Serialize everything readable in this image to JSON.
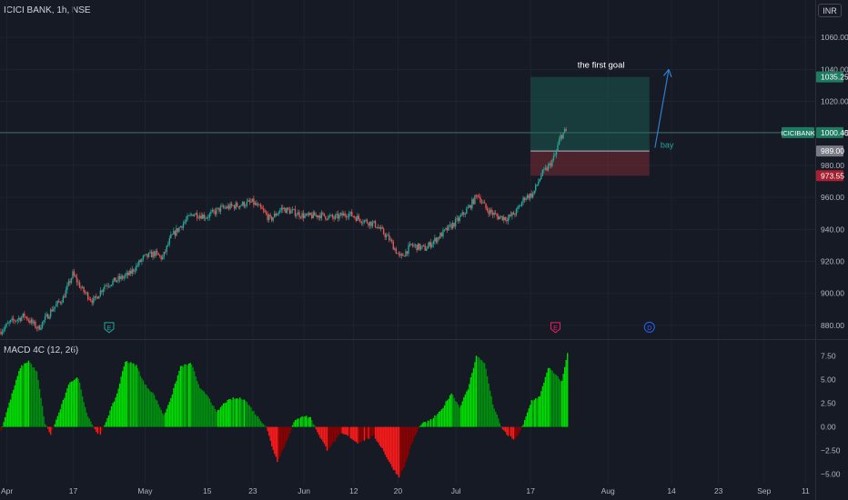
{
  "header": {
    "title": "ICICI BANK, 1h, NSE"
  },
  "currency_button": {
    "label": "INR"
  },
  "chart_data": [
    {
      "type": "line",
      "name": "price",
      "symbol_label": "ICICIBANK",
      "yticks": [
        880,
        900,
        920,
        940,
        960,
        980,
        1000,
        1020,
        1040,
        1060
      ],
      "ylim": [
        872,
        1072
      ],
      "xticks": [
        {
          "label": "Apr",
          "i": 5
        },
        {
          "label": "17",
          "i": 53
        },
        {
          "label": "May",
          "i": 105
        },
        {
          "label": "15",
          "i": 150
        },
        {
          "label": "23",
          "i": 183
        },
        {
          "label": "Jun",
          "i": 220
        },
        {
          "label": "12",
          "i": 256
        },
        {
          "label": "20",
          "i": 288
        },
        {
          "label": "Jul",
          "i": 330
        },
        {
          "label": "17",
          "i": 384
        },
        {
          "label": "Aug",
          "i": 440
        },
        {
          "label": "14",
          "i": 486
        },
        {
          "label": "23",
          "i": 520
        },
        {
          "label": "Sep",
          "i": 553
        },
        {
          "label": "11",
          "i": 583
        }
      ],
      "xlim": [
        0,
        590
      ],
      "last_price": 1000.45,
      "last_price_label": "1000.45",
      "levels": {
        "target": 1035.25,
        "target_label": "1035.25",
        "entry": 989.0,
        "entry_label": "989.00",
        "stop": 973.55,
        "stop_label": "973.55"
      },
      "position_box": {
        "i_start": 384,
        "i_end": 470
      },
      "arrow": {
        "i_start": 474,
        "y_start": 991,
        "i_end": 484,
        "y_end": 1040
      },
      "annotations": [
        {
          "text": "the first goal",
          "i": 435,
          "y": 1041
        },
        {
          "text": "bay",
          "i": 478,
          "y": 991
        }
      ],
      "event_markers": [
        {
          "label": "E",
          "i": 79,
          "y": 880
        },
        {
          "label": "E",
          "i": 402,
          "y": 880
        },
        {
          "label": "D",
          "i": 470,
          "y": 880
        }
      ],
      "anchors": [
        [
          0,
          876
        ],
        [
          8,
          882
        ],
        [
          18,
          886
        ],
        [
          28,
          878
        ],
        [
          38,
          890
        ],
        [
          46,
          897
        ],
        [
          53,
          912
        ],
        [
          60,
          902
        ],
        [
          68,
          895
        ],
        [
          76,
          905
        ],
        [
          84,
          908
        ],
        [
          94,
          912
        ],
        [
          104,
          922
        ],
        [
          112,
          925
        ],
        [
          118,
          922
        ],
        [
          124,
          935
        ],
        [
          132,
          943
        ],
        [
          140,
          950
        ],
        [
          150,
          948
        ],
        [
          160,
          953
        ],
        [
          172,
          955
        ],
        [
          183,
          957
        ],
        [
          190,
          952
        ],
        [
          196,
          946
        ],
        [
          204,
          953
        ],
        [
          212,
          951
        ],
        [
          222,
          948
        ],
        [
          232,
          949
        ],
        [
          242,
          947
        ],
        [
          252,
          950
        ],
        [
          262,
          946
        ],
        [
          272,
          943
        ],
        [
          282,
          934
        ],
        [
          290,
          922
        ],
        [
          298,
          930
        ],
        [
          308,
          928
        ],
        [
          316,
          934
        ],
        [
          324,
          940
        ],
        [
          332,
          946
        ],
        [
          340,
          954
        ],
        [
          346,
          962
        ],
        [
          352,
          953
        ],
        [
          360,
          948
        ],
        [
          368,
          947
        ],
        [
          374,
          951
        ],
        [
          380,
          960
        ],
        [
          386,
          962
        ],
        [
          392,
          974
        ],
        [
          398,
          980
        ],
        [
          402,
          986
        ],
        [
          406,
          998
        ],
        [
          409,
          1001
        ]
      ],
      "n_candles": 410
    },
    {
      "type": "bar",
      "name": "MACD 4C (12, 26)",
      "yticks": [
        7.5,
        5.0,
        2.5,
        0.0,
        -2.5,
        -5.0
      ],
      "ytick_labels": [
        "7.50",
        "5.00",
        "2.50",
        "0.00",
        "−2.50",
        "−5.00"
      ],
      "ylim": [
        -6.0,
        9.0
      ],
      "colors": {
        "pos_rising": "#00e000",
        "pos_falling": "#008f0e",
        "neg_rising": "#8f0000",
        "neg_falling": "#ff1a1a"
      },
      "anchors": [
        [
          0,
          -0.4
        ],
        [
          6,
          2.5
        ],
        [
          14,
          6.3
        ],
        [
          20,
          7.0
        ],
        [
          26,
          5.8
        ],
        [
          32,
          0.3
        ],
        [
          36,
          -0.8
        ],
        [
          42,
          1.5
        ],
        [
          50,
          4.8
        ],
        [
          56,
          5.2
        ],
        [
          62,
          1.5
        ],
        [
          68,
          -0.3
        ],
        [
          72,
          -0.9
        ],
        [
          76,
          0.6
        ],
        [
          84,
          3.5
        ],
        [
          90,
          7.0
        ],
        [
          98,
          6.5
        ],
        [
          104,
          4.5
        ],
        [
          110,
          3.6
        ],
        [
          118,
          1.2
        ],
        [
          124,
          3.5
        ],
        [
          130,
          6.4
        ],
        [
          138,
          6.7
        ],
        [
          144,
          4.0
        ],
        [
          150,
          3.3
        ],
        [
          156,
          1.5
        ],
        [
          162,
          2.6
        ],
        [
          168,
          3.0
        ],
        [
          176,
          3.0
        ],
        [
          184,
          1.4
        ],
        [
          192,
          0.0
        ],
        [
          196,
          -2.0
        ],
        [
          200,
          -3.6
        ],
        [
          206,
          -1.8
        ],
        [
          212,
          0.5
        ],
        [
          218,
          1.2
        ],
        [
          224,
          1.0
        ],
        [
          230,
          -0.8
        ],
        [
          236,
          -2.4
        ],
        [
          240,
          -1.8
        ],
        [
          246,
          -0.7
        ],
        [
          252,
          -1.0
        ],
        [
          258,
          -1.7
        ],
        [
          264,
          -1.3
        ],
        [
          270,
          -1.0
        ],
        [
          276,
          -2.3
        ],
        [
          282,
          -4.0
        ],
        [
          288,
          -5.3
        ],
        [
          292,
          -4.2
        ],
        [
          298,
          -1.5
        ],
        [
          304,
          0.3
        ],
        [
          310,
          0.6
        ],
        [
          318,
          1.6
        ],
        [
          326,
          3.6
        ],
        [
          332,
          2.1
        ],
        [
          338,
          4.0
        ],
        [
          344,
          7.5
        ],
        [
          350,
          6.8
        ],
        [
          356,
          2.4
        ],
        [
          362,
          0.0
        ],
        [
          366,
          -0.8
        ],
        [
          372,
          -1.4
        ],
        [
          378,
          0.2
        ],
        [
          384,
          2.8
        ],
        [
          390,
          3.2
        ],
        [
          396,
          6.3
        ],
        [
          402,
          5.4
        ],
        [
          406,
          4.8
        ],
        [
          410,
          7.9
        ]
      ]
    }
  ]
}
